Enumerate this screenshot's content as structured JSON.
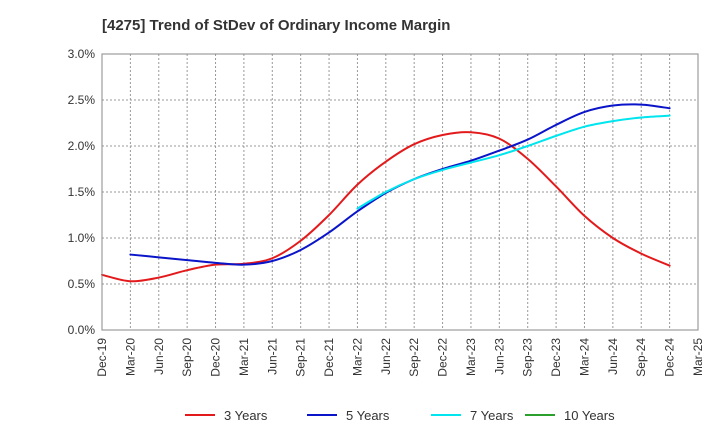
{
  "chart_data": {
    "type": "line",
    "title": "[4275]  Trend of StDev of Ordinary Income Margin",
    "xlabel": "",
    "ylabel": "",
    "ylim": [
      0,
      3.0
    ],
    "yticks": [
      "0.0%",
      "0.5%",
      "1.0%",
      "1.5%",
      "2.0%",
      "2.5%",
      "3.0%"
    ],
    "categories": [
      "Dec-19",
      "Mar-20",
      "Jun-20",
      "Sep-20",
      "Dec-20",
      "Mar-21",
      "Jun-21",
      "Sep-21",
      "Dec-21",
      "Mar-22",
      "Jun-22",
      "Sep-22",
      "Dec-22",
      "Mar-23",
      "Jun-23",
      "Sep-23",
      "Dec-23",
      "Mar-24",
      "Jun-24",
      "Sep-24",
      "Dec-24",
      "Mar-25"
    ],
    "grid": true,
    "legend_position": "bottom",
    "series": [
      {
        "name": "3 Years",
        "color": "#e31a1c",
        "values": [
          0.6,
          0.53,
          0.57,
          0.65,
          0.71,
          0.72,
          0.78,
          0.97,
          1.25,
          1.58,
          1.83,
          2.02,
          2.12,
          2.15,
          2.08,
          1.86,
          1.56,
          1.24,
          1.0,
          0.83,
          0.7,
          null
        ]
      },
      {
        "name": "5 Years",
        "color": "#0a14c8",
        "values": [
          null,
          0.82,
          0.79,
          0.76,
          0.73,
          0.71,
          0.75,
          0.87,
          1.06,
          1.29,
          1.49,
          1.64,
          1.75,
          1.84,
          1.95,
          2.07,
          2.23,
          2.37,
          2.44,
          2.45,
          2.41,
          null
        ]
      },
      {
        "name": "7 Years",
        "color": "#00e5ee",
        "values": [
          null,
          null,
          null,
          null,
          null,
          null,
          null,
          null,
          null,
          1.32,
          1.5,
          1.64,
          1.74,
          1.82,
          1.9,
          2.0,
          2.11,
          2.21,
          2.27,
          2.31,
          2.33,
          null
        ]
      },
      {
        "name": "10 Years",
        "color": "#2ca02c",
        "values": [
          null,
          null,
          null,
          null,
          null,
          null,
          null,
          null,
          null,
          null,
          null,
          null,
          null,
          null,
          null,
          null,
          null,
          null,
          null,
          null,
          null,
          null
        ]
      }
    ]
  }
}
